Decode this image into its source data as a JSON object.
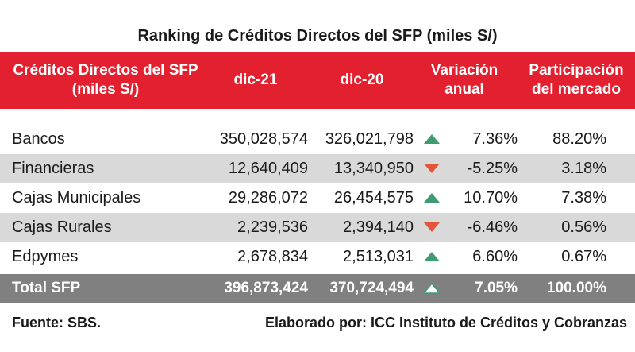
{
  "title": "Ranking de Créditos Directos del SFP (miles S/)",
  "colors": {
    "header_bg": "#e3202f",
    "shade_bg": "#d9d9d9",
    "total_bg": "#808080",
    "up_arrow": "#3f9b73",
    "down_arrow": "#e2553a"
  },
  "header": {
    "name_line1": "Créditos Directos del SFP",
    "name_line2": "(miles S/)",
    "dic21": "dic-21",
    "dic20": "dic-20",
    "var_line1": "Variación",
    "var_line2": "anual",
    "par_line1": "Participación",
    "par_line2": "del mercado"
  },
  "rows": [
    {
      "name": "Bancos",
      "dic21": "350,028,574",
      "dic20": "326,021,798",
      "trend_icon": "triangle-up-icon",
      "variation": "7.36%",
      "share": "88.20%"
    },
    {
      "name": "Financieras",
      "dic21": "12,640,409",
      "dic20": "13,340,950",
      "trend_icon": "triangle-down-icon",
      "variation": "-5.25%",
      "share": "3.18%"
    },
    {
      "name": "Cajas Municipales",
      "dic21": "29,286,072",
      "dic20": "26,454,575",
      "trend_icon": "triangle-up-icon",
      "variation": "10.70%",
      "share": "7.38%"
    },
    {
      "name": "Cajas Rurales",
      "dic21": "2,239,536",
      "dic20": "2,394,140",
      "trend_icon": "triangle-down-icon",
      "variation": "-6.46%",
      "share": "0.56%"
    },
    {
      "name": "Edpymes",
      "dic21": "2,678,834",
      "dic20": "2,513,031",
      "trend_icon": "triangle-up-icon",
      "variation": "6.60%",
      "share": "0.67%"
    }
  ],
  "total": {
    "name": "Total SFP",
    "dic21": "396,873,424",
    "dic20": "370,724,494",
    "trend_icon": "triangle-up-icon",
    "variation": "7.05%",
    "share": "100.00%"
  },
  "footer": {
    "source": "Fuente: SBS.",
    "credit": "Elaborado por: ICC Instituto de Créditos y Cobranzas"
  }
}
